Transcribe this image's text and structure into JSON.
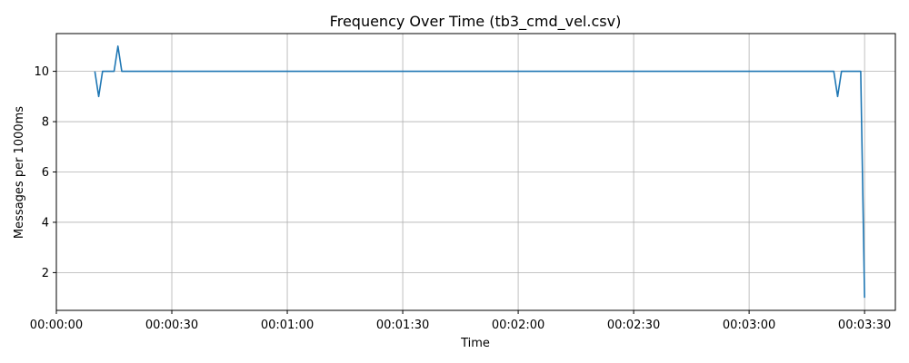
{
  "chart_data": {
    "type": "line",
    "title": "Frequency Over Time (tb3_cmd_vel.csv)",
    "xlabel": "Time",
    "ylabel": "Messages per 1000ms",
    "x_unit": "seconds",
    "xlim": [
      0,
      218
    ],
    "ylim": [
      0.5,
      11.5
    ],
    "x_ticks": [
      {
        "value": 0,
        "label": "00:00:00"
      },
      {
        "value": 30,
        "label": "00:00:30"
      },
      {
        "value": 60,
        "label": "00:01:00"
      },
      {
        "value": 90,
        "label": "00:01:30"
      },
      {
        "value": 120,
        "label": "00:02:00"
      },
      {
        "value": 150,
        "label": "00:02:30"
      },
      {
        "value": 180,
        "label": "00:03:00"
      },
      {
        "value": 210,
        "label": "00:03:30"
      }
    ],
    "y_ticks": [
      2,
      4,
      6,
      8,
      10
    ],
    "grid": true,
    "series": [
      {
        "color": "#1f77b4",
        "x": [
          10,
          11,
          12,
          13,
          14,
          15,
          16,
          17,
          18,
          197,
          198,
          199,
          200,
          201,
          202,
          203,
          204,
          205,
          206,
          207,
          208,
          209,
          210
        ],
        "y": [
          10,
          9,
          10,
          10,
          10,
          10,
          11,
          10,
          10,
          10,
          10,
          10,
          10,
          10,
          10,
          9,
          10,
          10,
          10,
          10,
          10,
          10,
          1
        ]
      }
    ]
  }
}
